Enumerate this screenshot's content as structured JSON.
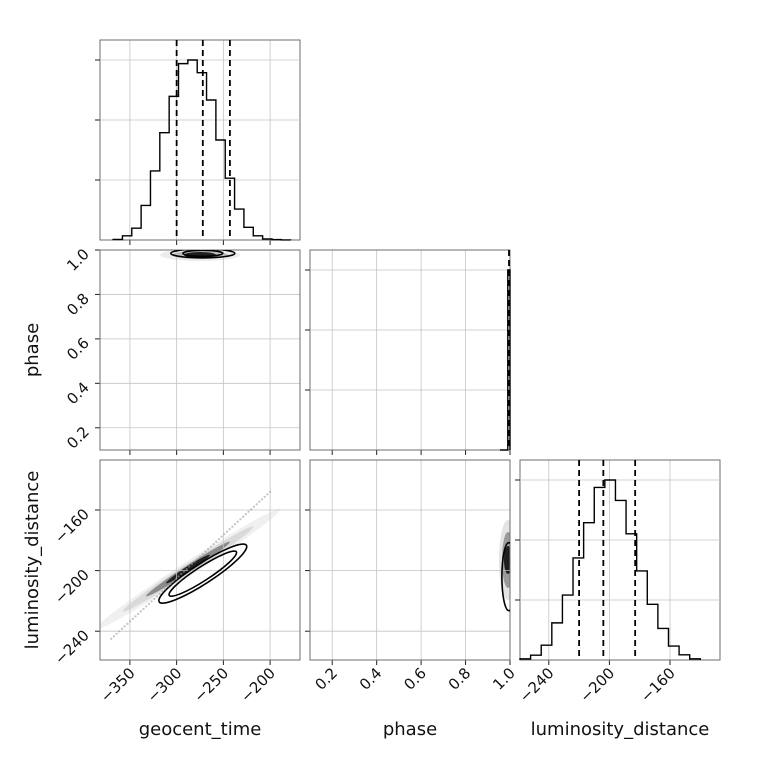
{
  "chart_data": {
    "type": "corner",
    "parameters": [
      "geocent_time",
      "phase",
      "luminosity_distance"
    ],
    "axes": {
      "geocent_time": {
        "range": [
          -382,
          -168
        ],
        "ticks": [
          -350,
          -300,
          -250,
          -200
        ],
        "tick_labels": [
          "−350",
          "−300",
          "−250",
          "−200"
        ],
        "label": "geocent_time"
      },
      "phase": {
        "range": [
          0.1,
          1.0
        ],
        "ticks": [
          0.2,
          0.4,
          0.6,
          0.8,
          1.0
        ],
        "tick_labels": [
          "0.2",
          "0.4",
          "0.6",
          "0.8",
          "1.0"
        ],
        "label": "phase"
      },
      "luminosity_distance": {
        "range": [
          -259,
          -127
        ],
        "ticks": [
          -240,
          -200,
          -160
        ],
        "tick_labels": [
          "−240",
          "−200",
          "−160"
        ],
        "label": "luminosity_distance"
      }
    },
    "histograms": [
      {
        "parameter": "geocent_time",
        "bin_edges": [
          -368,
          -358,
          -348,
          -338,
          -328,
          -318,
          -308,
          -298,
          -288,
          -278,
          -268,
          -258,
          -248,
          -238,
          -228,
          -218,
          -208,
          -198,
          -188,
          -178
        ],
        "counts": [
          0.3,
          2.3,
          6.5,
          19,
          38,
          59,
          79,
          97,
          99,
          92,
          77,
          55,
          34,
          17,
          7,
          2.3,
          0.6,
          0.2,
          0.05
        ],
        "quantiles": [
          -300,
          -272,
          -243
        ]
      },
      {
        "parameter": "phase",
        "bin_edges": [
          0.955,
          0.99,
          1.0
        ],
        "counts": [
          0,
          100
        ],
        "quantiles": [
          1.0
        ]
      },
      {
        "parameter": "luminosity_distance",
        "bin_edges": [
          -259,
          -252,
          -245,
          -238,
          -231,
          -224,
          -217,
          -210,
          -203,
          -196,
          -189,
          -182,
          -175,
          -168,
          -161,
          -154,
          -147,
          -140
        ],
        "counts": [
          0.6,
          2.6,
          8,
          20,
          35,
          55,
          74,
          93,
          97,
          86,
          68,
          48,
          30,
          17,
          7.5,
          2.8,
          0.6
        ],
        "quantiles": [
          -220,
          -204,
          -183
        ]
      }
    ],
    "joint": [
      {
        "x": "geocent_time",
        "y": "phase",
        "center": [
          -272,
          0.985
        ],
        "shape": "thin horizontal band at phase ≈ 1.0"
      },
      {
        "x": "geocent_time",
        "y": "luminosity_distance",
        "correlation": 0.99,
        "trend": [
          [
            -370,
            -245
          ],
          [
            -200,
            -148
          ]
        ]
      },
      {
        "x": "phase",
        "y": "luminosity_distance",
        "center": [
          0.995,
          -204
        ],
        "shape": "narrow vertical band at phase ≈ 1.0"
      }
    ],
    "grid": true
  }
}
